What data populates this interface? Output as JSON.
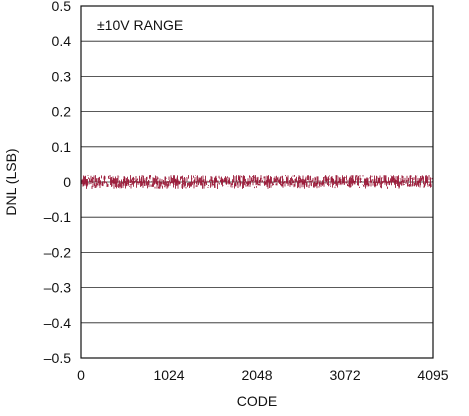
{
  "chart_data": {
    "type": "line",
    "title": "",
    "annotation": "±10V RANGE",
    "xlabel": "CODE",
    "ylabel": "DNL (LSB)",
    "xlim": [
      0,
      4095
    ],
    "ylim": [
      -0.5,
      0.5
    ],
    "x_ticks": [
      0,
      1024,
      2048,
      3072,
      4095
    ],
    "x_tick_labels": [
      "0",
      "1024",
      "2048",
      "3072",
      "4095"
    ],
    "y_ticks": [
      0.5,
      0.4,
      0.3,
      0.2,
      0.1,
      0,
      -0.1,
      -0.2,
      -0.3,
      -0.4,
      -0.5
    ],
    "y_tick_labels": [
      "0.5",
      "0.4",
      "0.3",
      "0.2",
      "0.1",
      "0",
      "–0.1",
      "–0.2",
      "–0.3",
      "–0.4",
      "–0.5"
    ],
    "grid": true,
    "series": [
      {
        "color": "#9b1b3a",
        "x_range": [
          0,
          4095
        ],
        "y_center": 0,
        "y_min": -0.02,
        "y_max": 0.02
      }
    ]
  }
}
